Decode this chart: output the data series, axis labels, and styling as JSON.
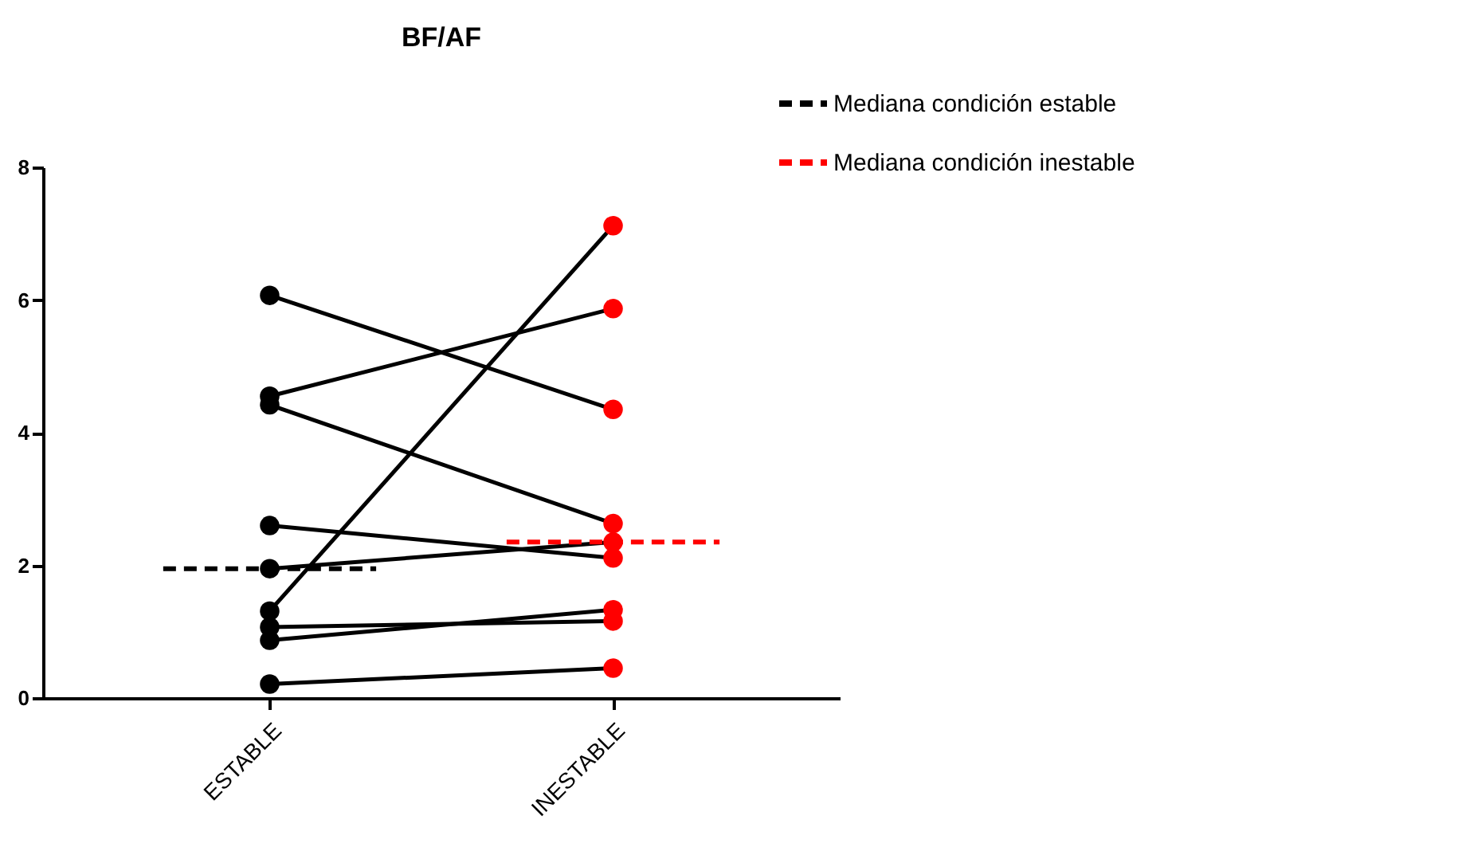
{
  "chart_data": {
    "type": "line",
    "title": "BF/AF",
    "categories": [
      "ESTABLE",
      "INESTABLE"
    ],
    "ylim": [
      0,
      8
    ],
    "yticks": [
      0,
      2,
      4,
      6,
      8
    ],
    "grid": false,
    "marker": "circle",
    "line_style": "solid",
    "legend": "top right",
    "series": [
      {
        "color": "#000000",
        "colors": [
          "#000000",
          "#ff0000"
        ],
        "values": [
          6.07,
          4.35
        ]
      },
      {
        "color": "#000000",
        "colors": [
          "#000000",
          "#ff0000"
        ],
        "values": [
          4.55,
          5.87
        ]
      },
      {
        "color": "#000000",
        "colors": [
          "#000000",
          "#ff0000"
        ],
        "values": [
          4.42,
          2.63
        ]
      },
      {
        "color": "#000000",
        "colors": [
          "#000000",
          "#ff0000"
        ],
        "values": [
          2.6,
          2.11
        ]
      },
      {
        "color": "#000000",
        "colors": [
          "#000000",
          "#ff0000"
        ],
        "values": [
          1.95,
          2.35
        ]
      },
      {
        "color": "#000000",
        "colors": [
          "#000000",
          "#ff0000"
        ],
        "values": [
          1.31,
          7.12
        ]
      },
      {
        "color": "#000000",
        "colors": [
          "#000000",
          "#ff0000"
        ],
        "values": [
          1.07,
          1.16
        ]
      },
      {
        "color": "#000000",
        "colors": [
          "#000000",
          "#ff0000"
        ],
        "values": [
          0.87,
          1.33
        ]
      },
      {
        "color": "#000000",
        "colors": [
          "#000000",
          "#ff0000"
        ],
        "values": [
          0.21,
          0.45
        ]
      }
    ],
    "ref_lines": [
      {
        "axis": "y",
        "value": 1.95,
        "label": "Mediana condición estable",
        "color": "#000000",
        "line_style": "dashed"
      },
      {
        "axis": "y",
        "value": 2.35,
        "label": "Mediana condición inestable",
        "color": "#ff0000",
        "line_style": "dashed"
      }
    ]
  }
}
